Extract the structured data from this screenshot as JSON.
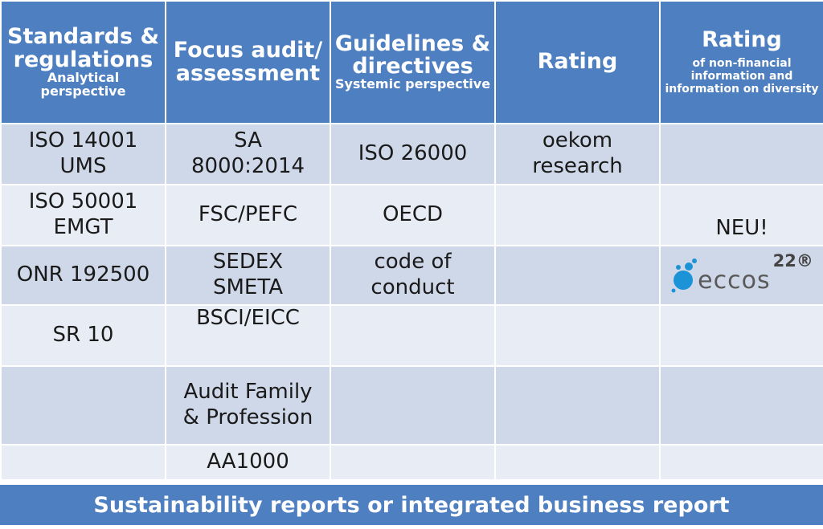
{
  "header": {
    "col1": {
      "title": "Standards & regulations",
      "sub": "Analytical perspective"
    },
    "col2": {
      "title": "Focus audit/ assessment"
    },
    "col3": {
      "title": "Guidelines & directives",
      "sub": "Systemic perspective"
    },
    "col4": {
      "title": "Rating"
    },
    "col5": {
      "title": "Rating",
      "sub": "of non-financial information and information on diversity"
    }
  },
  "rows": [
    {
      "c1": [
        "ISO 14001",
        "UMS"
      ],
      "c2": [
        "SA",
        "8000:2014"
      ],
      "c3": [
        "ISO 26000"
      ],
      "c4": [
        "oekom",
        "research"
      ],
      "c5": []
    },
    {
      "c1": [
        "ISO 50001",
        "EMGT"
      ],
      "c2": [
        "FSC/PEFC"
      ],
      "c3": [
        "OECD"
      ],
      "c4": [],
      "c5": [
        "NEU!"
      ]
    },
    {
      "c1": [
        "ONR 192500"
      ],
      "c2": [
        "SEDEX",
        "SMETA"
      ],
      "c3": [
        "code of",
        "conduct"
      ],
      "c4": [],
      "c5": []
    },
    {
      "c1": [
        "SR 10"
      ],
      "c2": [
        "BSCI/EICC"
      ],
      "c3": [],
      "c4": [],
      "c5": []
    },
    {
      "c1": [],
      "c2": [
        "Audit Family",
        "& Profession"
      ],
      "c3": [],
      "c4": [],
      "c5": []
    },
    {
      "c1": [],
      "c2": [
        "AA1000"
      ],
      "c3": [],
      "c4": [],
      "c5": []
    }
  ],
  "logo": {
    "text": "eccos",
    "superscript": "22®",
    "icon": "eccos-dots-logo-icon",
    "colors": {
      "primary": "#1b93d6",
      "text": "#5a5a5a"
    }
  },
  "footer": {
    "text": "Sustainability reports or integrated business report"
  },
  "colors": {
    "header_bg": "#4e7fc0",
    "row_dark": "#cfd8e8",
    "row_light": "#e8edf5",
    "border": "#ffffff"
  }
}
